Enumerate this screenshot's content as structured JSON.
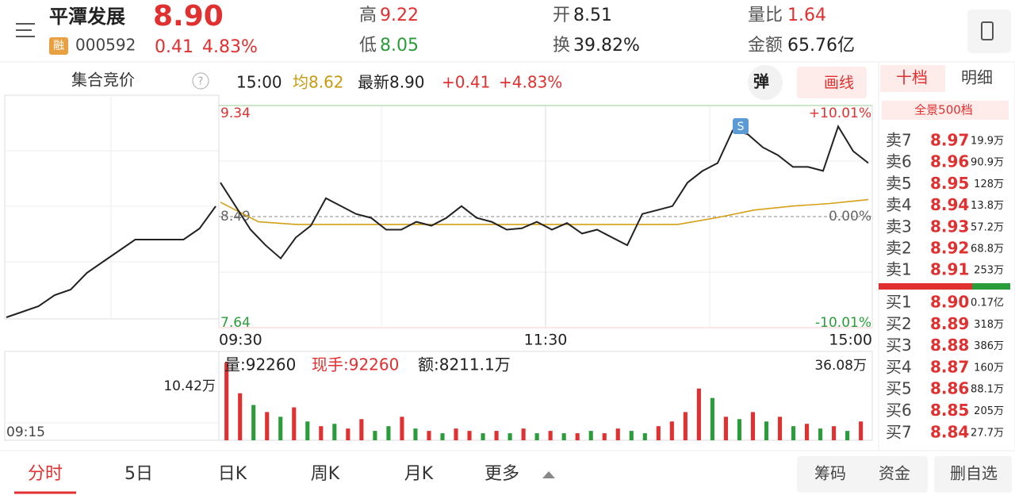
{
  "header": {
    "name": "平潭发展",
    "price": "8.90",
    "badge": "融",
    "code": "000592",
    "change": "0.41",
    "change_pct": "4.83%",
    "stats": [
      {
        "label": "高",
        "value": "9.22"
      },
      {
        "label": "低",
        "value": "8.05"
      },
      {
        "label": "开",
        "value": "8.51"
      },
      {
        "label": "换",
        "value": "39.82%"
      },
      {
        "label": "量比",
        "value": "1.64"
      },
      {
        "label": "金额",
        "value": "65.76亿"
      }
    ]
  },
  "toolbar": {
    "auction": "集合竞价",
    "help": "?",
    "time": "15:00",
    "avg": "均8.62",
    "latest": "最新8.90",
    "chg": "+0.41",
    "pct": "+4.83%",
    "popup": "弹",
    "draw": "画线"
  },
  "book": {
    "tabs": [
      "十档",
      "明细"
    ],
    "panorama": "全景500档",
    "sell": [
      {
        "label": "卖7",
        "price": "8.97",
        "vol": "19.9万"
      },
      {
        "label": "卖6",
        "price": "8.96",
        "vol": "90.9万"
      },
      {
        "label": "卖5",
        "price": "8.95",
        "vol": "128万"
      },
      {
        "label": "卖4",
        "price": "8.94",
        "vol": "13.8万"
      },
      {
        "label": "卖3",
        "price": "8.93",
        "vol": "57.2万"
      },
      {
        "label": "卖2",
        "price": "8.92",
        "vol": "68.8万"
      },
      {
        "label": "卖1",
        "price": "8.91",
        "vol": "253万"
      }
    ],
    "buy": [
      {
        "label": "买1",
        "price": "8.90",
        "vol": "0.17亿"
      },
      {
        "label": "买2",
        "price": "8.89",
        "vol": "318万"
      },
      {
        "label": "买3",
        "price": "8.88",
        "vol": "386万"
      },
      {
        "label": "买4",
        "price": "8.87",
        "vol": "160万"
      },
      {
        "label": "买5",
        "price": "8.86",
        "vol": "88.1万"
      },
      {
        "label": "买6",
        "price": "8.85",
        "vol": "205万"
      },
      {
        "label": "买7",
        "price": "8.84",
        "vol": "27.7万"
      }
    ]
  },
  "intraday": {
    "type": "line",
    "ylim": [
      7.64,
      9.34
    ],
    "yticks": [
      9.34,
      8.49,
      7.64
    ],
    "pct_labels": [
      "+10.01%",
      "0.00%",
      "-10.01%"
    ],
    "xlabels": [
      "09:30",
      "11:30",
      "15:00"
    ],
    "marker": "S",
    "price": {
      "color": "#222222",
      "values": [
        8.75,
        8.57,
        8.39,
        8.27,
        8.17,
        8.33,
        8.42,
        8.63,
        8.57,
        8.51,
        8.48,
        8.39,
        8.39,
        8.45,
        8.42,
        8.48,
        8.57,
        8.48,
        8.45,
        8.39,
        8.4,
        8.45,
        8.39,
        8.44,
        8.36,
        8.39,
        8.33,
        8.27,
        8.51,
        8.54,
        8.57,
        8.75,
        8.84,
        8.9,
        9.15,
        9.12,
        9.02,
        8.96,
        8.87,
        8.87,
        8.84,
        9.18,
        8.99,
        8.9
      ]
    },
    "avg": {
      "color": "#d4a017",
      "values": [
        8.6,
        8.45,
        8.43,
        8.43,
        8.43,
        8.43,
        8.43,
        8.43,
        8.43,
        8.43,
        8.43,
        8.43,
        8.43,
        8.48,
        8.54,
        8.57,
        8.59,
        8.62
      ]
    }
  },
  "volume": {
    "type": "bar",
    "ylim": [
      0,
      36.08
    ],
    "top_label": "36.08万",
    "info": [
      "量:92260",
      "现手:92260",
      "额:8211.1万"
    ],
    "values": [
      33,
      20,
      15,
      12,
      10,
      14,
      8,
      6,
      7,
      5,
      9,
      4,
      6,
      10,
      5,
      4,
      3,
      5,
      4,
      3,
      4,
      3,
      5,
      3,
      4,
      3,
      3,
      4,
      3,
      5,
      4,
      3,
      6,
      8,
      12,
      22,
      18,
      10,
      9,
      12,
      8,
      10,
      6,
      7,
      5,
      6,
      4,
      8
    ],
    "colors": [
      "#e03030",
      "#e03030",
      "#2a9d3a",
      "#e03030",
      "#2a9d3a",
      "#e03030",
      "#2a9d3a",
      "#e03030",
      "#2a9d3a",
      "#e03030",
      "#e03030",
      "#2a9d3a",
      "#2a9d3a",
      "#e03030",
      "#2a9d3a",
      "#e03030",
      "#2a9d3a",
      "#e03030",
      "#e03030",
      "#2a9d3a",
      "#e03030",
      "#2a9d3a",
      "#e03030",
      "#2a9d3a",
      "#e03030",
      "#2a9d3a",
      "#e03030",
      "#2a9d3a",
      "#e03030",
      "#e03030",
      "#2a9d3a",
      "#2a9d3a",
      "#e03030",
      "#e03030",
      "#e03030",
      "#e03030",
      "#2a9d3a",
      "#e03030",
      "#2a9d3a",
      "#e03030",
      "#2a9d3a",
      "#e03030",
      "#2a9d3a",
      "#e03030",
      "#2a9d3a",
      "#e03030",
      "#2a9d3a",
      "#e03030"
    ]
  },
  "auction_panel": {
    "vol_label": "10.42万",
    "time": "09:15",
    "values": [
      0,
      0.5,
      1,
      2,
      2.5,
      4,
      5,
      6,
      7,
      7,
      7,
      7,
      8,
      10
    ]
  },
  "tabs": [
    "分时",
    "5日",
    "日K",
    "周K",
    "月K",
    "更多"
  ],
  "actions": [
    "筹码",
    "资金",
    "删自选"
  ]
}
